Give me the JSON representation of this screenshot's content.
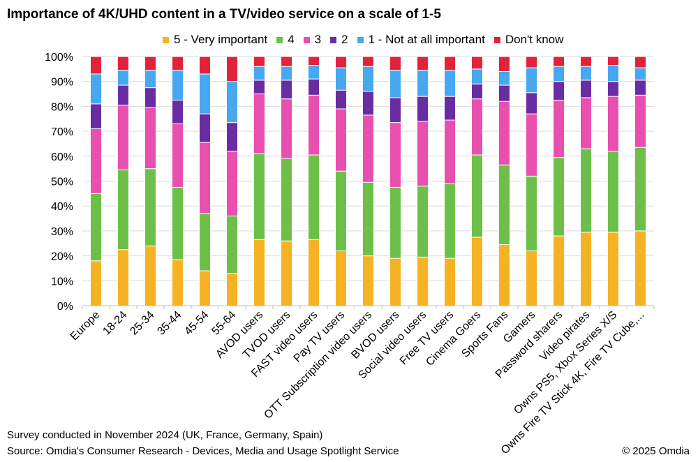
{
  "chart_data": {
    "type": "stacked-bar-100",
    "title": "Importance of 4K/UHD content in a TV/video service on a scale of 1-5",
    "xlabel": "",
    "ylabel": "",
    "ylim": [
      0,
      100
    ],
    "yticks": [
      "0%",
      "10%",
      "20%",
      "30%",
      "40%",
      "50%",
      "60%",
      "70%",
      "80%",
      "90%",
      "100%"
    ],
    "legend_position": "top",
    "categories": [
      "Europe",
      "18-24",
      "25-34",
      "35-44",
      "45-54",
      "55-64",
      "AVOD users",
      "TVOD users",
      "FAST video users",
      "Pay TV users",
      "OTT Subscription video users",
      "BVOD users",
      "Social video users",
      "Free TV users",
      "Cinema Goers",
      "Sports Fans",
      "Gamers",
      "Password sharers",
      "Video pirates",
      "Owns PS5, Xbox Series X/S",
      "Owns Fire TV Stick 4K, Fire TV Cube,..."
    ],
    "series": [
      {
        "name": "5 - Very important",
        "color": "#F5B324",
        "values": [
          18,
          22.5,
          24,
          18.5,
          14,
          13,
          26.5,
          26,
          26.5,
          22,
          20,
          19,
          19.5,
          19,
          27.5,
          24.5,
          22,
          28,
          29.5,
          29.5,
          30
        ]
      },
      {
        "name": "4",
        "color": "#6CC04A",
        "values": [
          27,
          32,
          31,
          29,
          23,
          23,
          34.5,
          33,
          34,
          32,
          29.5,
          28.5,
          28.5,
          30,
          33,
          32,
          30,
          31.5,
          33.5,
          32.5,
          33.5
        ]
      },
      {
        "name": "3",
        "color": "#E94FAE",
        "values": [
          26,
          26,
          24.5,
          25.5,
          28.5,
          26,
          24,
          24,
          24,
          25,
          27,
          26,
          26,
          25.5,
          22.5,
          25.5,
          25,
          23,
          20.5,
          22,
          21
        ]
      },
      {
        "name": "2",
        "color": "#6A2CA2",
        "values": [
          10,
          8,
          8,
          9.5,
          11.5,
          11.5,
          5.5,
          7.5,
          6.5,
          7.5,
          9.5,
          10,
          10,
          9.5,
          6,
          6.5,
          8.5,
          7.5,
          7,
          6,
          6
        ]
      },
      {
        "name": "1 - Not at all important",
        "color": "#45A8F0",
        "values": [
          12,
          6,
          7,
          12,
          16,
          16.5,
          5.5,
          5.5,
          5.5,
          9,
          10,
          11,
          10.5,
          10.5,
          6,
          5.5,
          10,
          6,
          5.5,
          6.5,
          5
        ]
      },
      {
        "name": "Don't know",
        "color": "#E2223C",
        "values": [
          7,
          5.5,
          5.5,
          5.5,
          7,
          10,
          4,
          4,
          3.5,
          4.5,
          4,
          5.5,
          5.5,
          5.5,
          5,
          6,
          4.5,
          4,
          4,
          3.5,
          4.5
        ]
      }
    ]
  },
  "footer": {
    "survey_note": "Survey conducted in November 2024 (UK, France, Germany, Spain)",
    "source_note": "Source: Omdia's Consumer Research - Devices, Media and Usage Spotlight Service",
    "copyright": "© 2025 Omdia"
  }
}
